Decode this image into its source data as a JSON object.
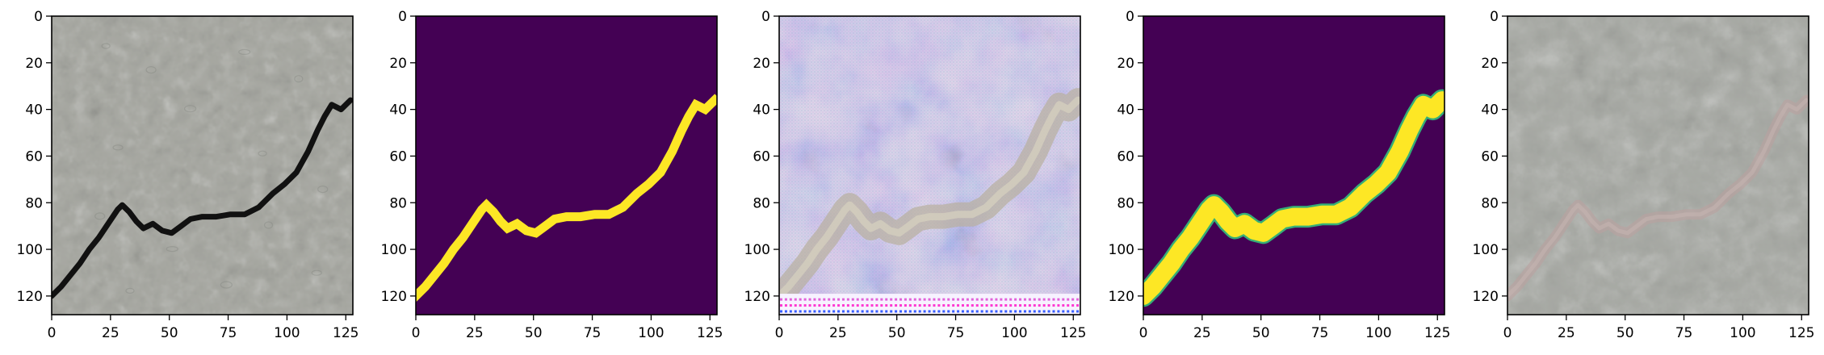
{
  "figure": {
    "panel_count": 5,
    "panels": [
      {
        "kind": "photo-with-crack",
        "description_icon": "texture-image"
      },
      {
        "kind": "binary-mask",
        "description_icon": "mask-image"
      },
      {
        "kind": "generated-texture",
        "description_icon": "texture-image"
      },
      {
        "kind": "soft-mask",
        "description_icon": "mask-image"
      },
      {
        "kind": "photo-with-faint-crack",
        "description_icon": "texture-image"
      }
    ],
    "x_ticks": [
      "0",
      "25",
      "50",
      "75",
      "100",
      "125"
    ],
    "y_ticks": [
      "0",
      "20",
      "40",
      "60",
      "80",
      "100",
      "120"
    ],
    "colors": {
      "mask_background": "#440154",
      "mask_foreground": "#fde725",
      "soft_edge": "#35b779",
      "stone_base": "#a7a8a2",
      "stone_light": "#bfc0ba",
      "crack_dark": "#111111",
      "generated_base": "#ddd8e8",
      "generated_purple": "#b9a6d0",
      "faint_crack": "#b9a2a0"
    }
  },
  "chart_data": {
    "type": "image-grid",
    "axes": {
      "x_range": [
        0,
        128
      ],
      "y_range": [
        128,
        0
      ],
      "x_ticks": [
        0,
        25,
        50,
        75,
        100,
        125
      ],
      "y_ticks": [
        0,
        20,
        40,
        60,
        80,
        100,
        120
      ]
    },
    "crack_path": [
      [
        0,
        120
      ],
      [
        4,
        116
      ],
      [
        8,
        111
      ],
      [
        12,
        106
      ],
      [
        16,
        100
      ],
      [
        20,
        95
      ],
      [
        24,
        89
      ],
      [
        28,
        83
      ],
      [
        30,
        81
      ],
      [
        33,
        84
      ],
      [
        36,
        88
      ],
      [
        39,
        91
      ],
      [
        43,
        89
      ],
      [
        47,
        92
      ],
      [
        51,
        93
      ],
      [
        55,
        90
      ],
      [
        59,
        87
      ],
      [
        64,
        86
      ],
      [
        70,
        86
      ],
      [
        76,
        85
      ],
      [
        82,
        85
      ],
      [
        88,
        82
      ],
      [
        94,
        76
      ],
      [
        99,
        72
      ],
      [
        104,
        67
      ],
      [
        109,
        58
      ],
      [
        113,
        49
      ],
      [
        116,
        43
      ],
      [
        119,
        38
      ],
      [
        123,
        40
      ],
      [
        127,
        36
      ]
    ]
  }
}
